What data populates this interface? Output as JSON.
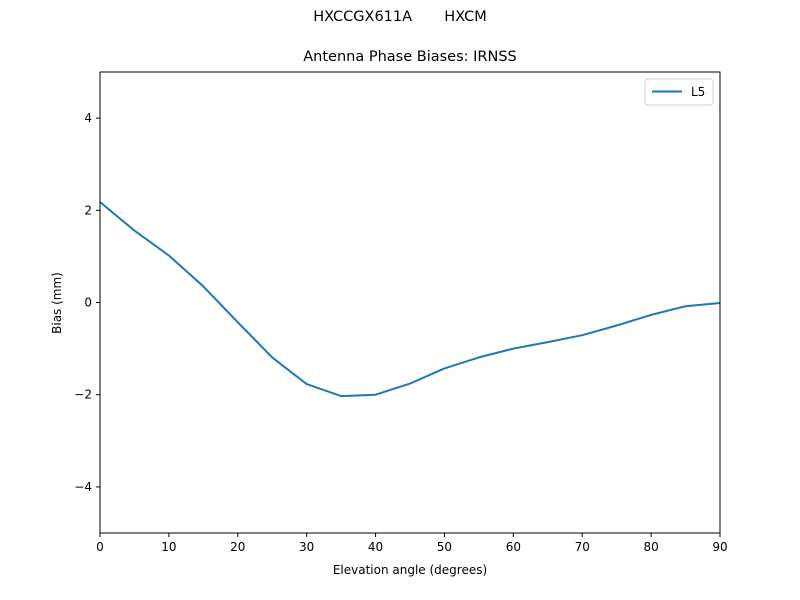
{
  "figure": {
    "suptitle": "HXCCGX611A       HXCM",
    "title": "Antenna Phase Biases: IRNSS"
  },
  "chart_data": {
    "type": "line",
    "title": "Antenna Phase Biases: IRNSS",
    "suptitle": "HXCCGX611A       HXCM",
    "xlabel": "Elevation angle (degrees)",
    "ylabel": "Bias (mm)",
    "xlim": [
      0,
      90
    ],
    "ylim": [
      -5,
      5
    ],
    "xticks": [
      0,
      10,
      20,
      30,
      40,
      50,
      60,
      70,
      80,
      90
    ],
    "yticks": [
      -4,
      -2,
      0,
      2,
      4
    ],
    "ytick_labels": [
      "−4",
      "−2",
      "0",
      "2",
      "4"
    ],
    "grid": false,
    "legend_position": "upper right",
    "x": [
      0,
      5,
      10,
      15,
      20,
      25,
      30,
      35,
      40,
      45,
      50,
      55,
      60,
      65,
      70,
      75,
      80,
      85,
      90
    ],
    "series": [
      {
        "name": "L5",
        "color": "#1f77b4",
        "values": [
          2.18,
          1.56,
          1.02,
          0.35,
          -0.43,
          -1.19,
          -1.77,
          -2.03,
          -2.0,
          -1.76,
          -1.43,
          -1.19,
          -1.0,
          -0.86,
          -0.71,
          -0.5,
          -0.27,
          -0.08,
          -0.01
        ]
      }
    ]
  }
}
